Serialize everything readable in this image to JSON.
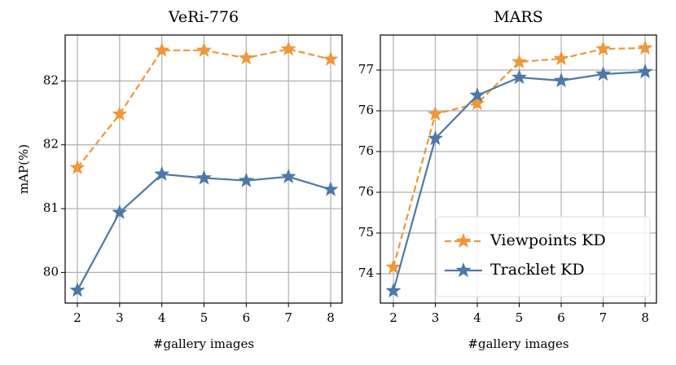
{
  "chart_data": [
    {
      "type": "line",
      "title": "VeRi-776",
      "xlabel": "#gallery images",
      "ylabel": "mAP(%)",
      "x": [
        2,
        3,
        4,
        5,
        6,
        7,
        8
      ],
      "series": [
        {
          "color": "#f0973a",
          "dash": true,
          "values": [
            81.32,
            81.74,
            82.24,
            82.24,
            82.18,
            82.25,
            82.17
          ]
        },
        {
          "color": "#4e79a7",
          "dash": false,
          "values": [
            80.36,
            80.97,
            81.27,
            81.24,
            81.22,
            81.25,
            81.15
          ]
        }
      ],
      "xlim": [
        1.71,
        8.27
      ],
      "xticks": [
        2,
        3,
        4,
        5,
        6,
        7,
        8
      ],
      "ylim": [
        80.26,
        82.36
      ],
      "yticks": [
        {
          "value": 80.5,
          "label": "80"
        },
        81,
        {
          "value": 81.5,
          "label": "82"
        },
        82
      ],
      "grid": true
    },
    {
      "type": "line",
      "title": "MARS",
      "xlabel": "#gallery images",
      "x": [
        2,
        3,
        4,
        5,
        6,
        7,
        8
      ],
      "series": [
        {
          "name": "Viewpoints KD",
          "color": "#f0973a",
          "dash": true,
          "values": [
            74.58,
            76.46,
            76.59,
            77.1,
            77.14,
            77.26,
            77.27
          ]
        },
        {
          "name": "Tracklet KD",
          "color": "#4e79a7",
          "dash": false,
          "values": [
            74.29,
            76.16,
            76.69,
            76.91,
            76.87,
            76.95,
            76.98
          ]
        }
      ],
      "xlim": [
        1.69,
        8.27
      ],
      "xticks": [
        2,
        3,
        4,
        5,
        6,
        7,
        8
      ],
      "ylim": [
        74.14,
        77.43
      ],
      "yticks": [
        {
          "value": 74.5,
          "label": "74"
        },
        75,
        {
          "value": 75.5,
          "label": "76"
        },
        76,
        {
          "value": 76.5,
          "label": "76"
        },
        77
      ],
      "grid": true,
      "legend": "lower right"
    }
  ]
}
